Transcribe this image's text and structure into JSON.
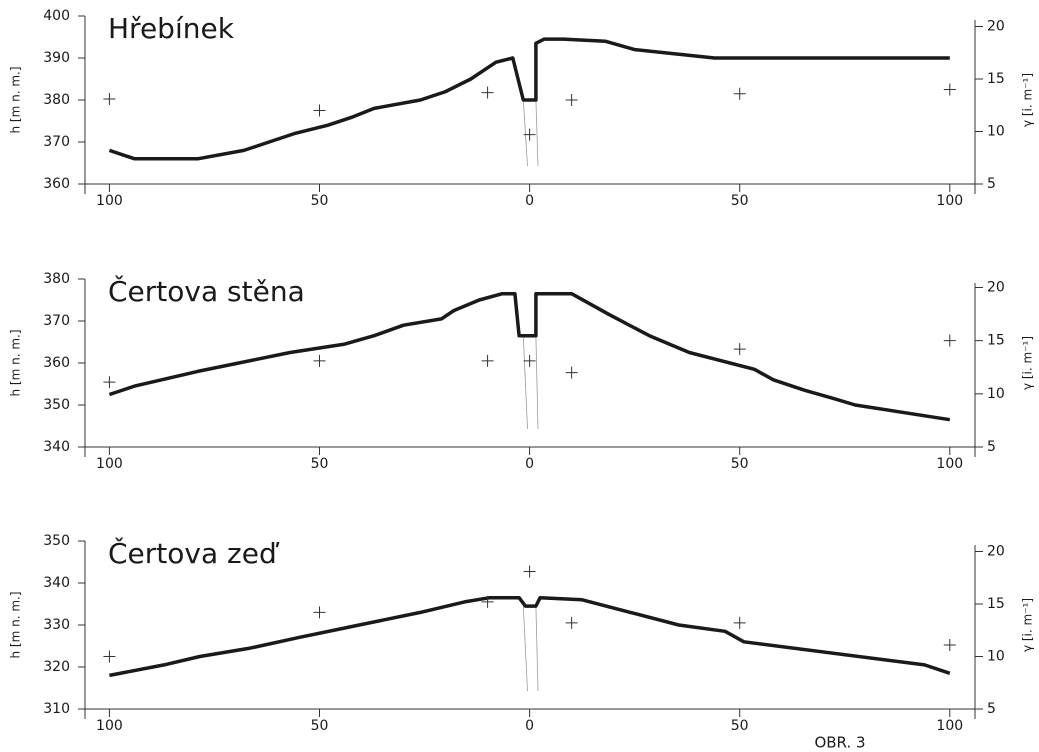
{
  "chart_data": [
    {
      "type": "line",
      "title": "Hřebínek",
      "ylabel": "h [m n. m.]",
      "y2label": "γ [i. m⁻¹]",
      "xlim": [
        -107,
        106
      ],
      "xticks": [
        {
          "value": -100,
          "label": "100"
        },
        {
          "value": -50,
          "label": "50"
        },
        0,
        50,
        100
      ],
      "ylim": [
        360,
        400
      ],
      "yticks": [
        360,
        370,
        380,
        390,
        400
      ],
      "y2lim": [
        5,
        21
      ],
      "y2ticks": [
        5,
        10,
        15,
        20
      ],
      "series": [
        {
          "type": "line",
          "color": "#1a1a1a",
          "x": [
            -100,
            -94,
            -79,
            -68,
            -62,
            -56,
            -48,
            -42,
            -37,
            -26,
            -20,
            -14,
            -8,
            -4,
            -1.5,
            1.5,
            1.5,
            3.5,
            8,
            18,
            25,
            44,
            100
          ],
          "values": [
            368,
            366,
            366,
            368,
            370,
            372,
            374,
            376,
            378,
            380,
            382,
            385,
            389,
            390,
            380,
            380,
            393.5,
            394.5,
            394.5,
            394,
            392,
            390,
            390
          ]
        },
        {
          "type": "scatter",
          "axis": "y2",
          "color": "#333333",
          "x": [
            -100,
            -50,
            -10,
            0,
            10,
            50,
            100
          ],
          "values": [
            13.1,
            12.0,
            13.7,
            9.7,
            13.0,
            13.6,
            14.0
          ]
        }
      ]
    },
    {
      "type": "line",
      "title": "Čertova stěna",
      "ylabel": "h [m n. m.]",
      "y2label": "γ [i. m⁻¹]",
      "xlim": [
        -107,
        106
      ],
      "xticks": [
        {
          "value": -100,
          "label": "100"
        },
        {
          "value": -50,
          "label": "50"
        },
        0,
        50,
        100
      ],
      "ylim": [
        340,
        380
      ],
      "yticks": [
        340,
        350,
        360,
        370,
        380
      ],
      "y2lim": [
        5,
        20.8
      ],
      "y2ticks": [
        5,
        10,
        15,
        20
      ],
      "series": [
        {
          "type": "line",
          "color": "#1a1a1a",
          "x": [
            -100,
            -94,
            -79,
            -57,
            -44,
            -37,
            -30,
            -21,
            -18,
            -12,
            -6.5,
            -3.5,
            -2.5,
            1.5,
            1.5,
            10,
            19,
            28.5,
            38,
            53.5,
            58,
            65.5,
            72.5,
            77.5,
            100
          ],
          "values": [
            352.5,
            354.5,
            358,
            362.5,
            364.5,
            366.5,
            369,
            370.5,
            372.5,
            375,
            376.5,
            376.5,
            366.5,
            366.5,
            376.5,
            376.5,
            371.5,
            366.5,
            362.5,
            358.5,
            356,
            353.5,
            351.5,
            350,
            346.5
          ]
        },
        {
          "type": "scatter",
          "axis": "y2",
          "color": "#333333",
          "x": [
            -100,
            -50,
            -10,
            0,
            10,
            50,
            100
          ],
          "values": [
            11.1,
            13.1,
            13.1,
            13.1,
            12.0,
            14.2,
            15.0
          ]
        }
      ]
    },
    {
      "type": "line",
      "title": "Čertova zeď",
      "ylabel": "h [m n. m.]",
      "y2label": "γ [i. m⁻¹]",
      "xlim": [
        -107,
        106
      ],
      "xticks": [
        {
          "value": -100,
          "label": "100"
        },
        {
          "value": -50,
          "label": "50"
        },
        0,
        50,
        100
      ],
      "ylim": [
        310,
        350
      ],
      "yticks": [
        310,
        320,
        330,
        340,
        350
      ],
      "y2lim": [
        5,
        21
      ],
      "y2ticks": [
        5,
        10,
        15,
        20
      ],
      "series": [
        {
          "type": "line",
          "color": "#1a1a1a",
          "x": [
            -100,
            -87,
            -78.5,
            -66.5,
            -55,
            -43,
            -26,
            -15.5,
            -9.5,
            -2.5,
            -1,
            1.5,
            2.5,
            12.5,
            24,
            35.5,
            46.5,
            51,
            94,
            100
          ],
          "values": [
            318,
            320.5,
            322.5,
            324.5,
            327,
            329.5,
            333,
            335.5,
            336.5,
            336.5,
            334.5,
            334.5,
            336.5,
            336,
            333,
            330,
            328.5,
            326,
            320.5,
            318.5
          ]
        },
        {
          "type": "scatter",
          "axis": "y2",
          "color": "#333333",
          "x": [
            -100,
            -50,
            -10,
            0,
            10,
            50,
            100
          ],
          "values": [
            10.0,
            14.2,
            15.2,
            18.1,
            13.2,
            13.2,
            11.1
          ]
        }
      ]
    }
  ],
  "figure_label": "OBR. 3"
}
